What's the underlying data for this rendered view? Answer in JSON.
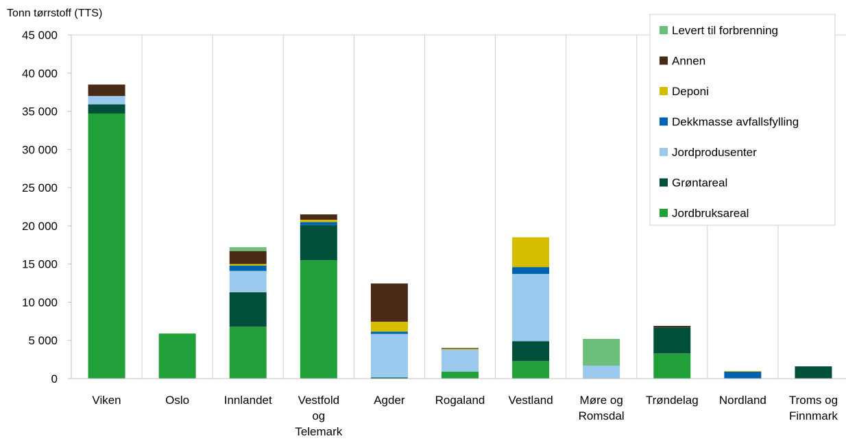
{
  "chart_data": {
    "type": "bar",
    "stacked": true,
    "title": "",
    "xlabel": "",
    "ylabel": "Tonn tørrstoff (TTS)",
    "ylim": [
      0,
      45000
    ],
    "yticks": [
      0,
      5000,
      10000,
      15000,
      20000,
      25000,
      30000,
      35000,
      40000,
      45000
    ],
    "ytick_labels": [
      "0",
      "5 000",
      "10 000",
      "15 000",
      "20 000",
      "25 000",
      "30 000",
      "35 000",
      "40 000",
      "45 000"
    ],
    "grid": "vertical",
    "legend_position": "top-right",
    "categories": [
      [
        "Viken"
      ],
      [
        "Oslo"
      ],
      [
        "Innlandet"
      ],
      [
        "Vestfold",
        "og",
        "Telemark"
      ],
      [
        "Agder"
      ],
      [
        "Rogaland"
      ],
      [
        "Vestland"
      ],
      [
        "Møre og",
        "Romsdal"
      ],
      [
        "Trøndelag"
      ],
      [
        "Nordland"
      ],
      [
        "Troms og",
        "Finnmark"
      ]
    ],
    "series": [
      {
        "name": "Jordbruksareal",
        "color": "#21a03a",
        "values": [
          34700,
          5900,
          6800,
          15500,
          0,
          900,
          2300,
          0,
          3300,
          0,
          0
        ]
      },
      {
        "name": "Grøntareal",
        "color": "#004f3b",
        "values": [
          1200,
          0,
          4500,
          4600,
          150,
          0,
          2600,
          0,
          3400,
          0,
          1600
        ]
      },
      {
        "name": "Jordprodusenter",
        "color": "#9bc9ed",
        "values": [
          1100,
          0,
          2800,
          0,
          5700,
          2900,
          8800,
          1700,
          0,
          0,
          0
        ]
      },
      {
        "name": "Dekkmasse avfallsfylling",
        "color": "#0063b0",
        "values": [
          0,
          0,
          700,
          400,
          300,
          0,
          900,
          0,
          0,
          900,
          0
        ]
      },
      {
        "name": "Deponi",
        "color": "#d7bd00",
        "values": [
          0,
          0,
          200,
          300,
          1300,
          100,
          3900,
          0,
          0,
          100,
          0
        ]
      },
      {
        "name": "Annen",
        "color": "#4a2a16",
        "values": [
          1500,
          0,
          1700,
          700,
          5000,
          100,
          0,
          0,
          200,
          0,
          0
        ]
      },
      {
        "name": "Levert til forbrenning",
        "color": "#6bbf78",
        "values": [
          0,
          0,
          500,
          0,
          0,
          0,
          0,
          3500,
          0,
          0,
          0
        ]
      }
    ],
    "legend_order": [
      "Levert til forbrenning",
      "Annen",
      "Deponi",
      "Dekkmasse avfallsfylling",
      "Jordprodusenter",
      "Grøntareal",
      "Jordbruksareal"
    ]
  }
}
